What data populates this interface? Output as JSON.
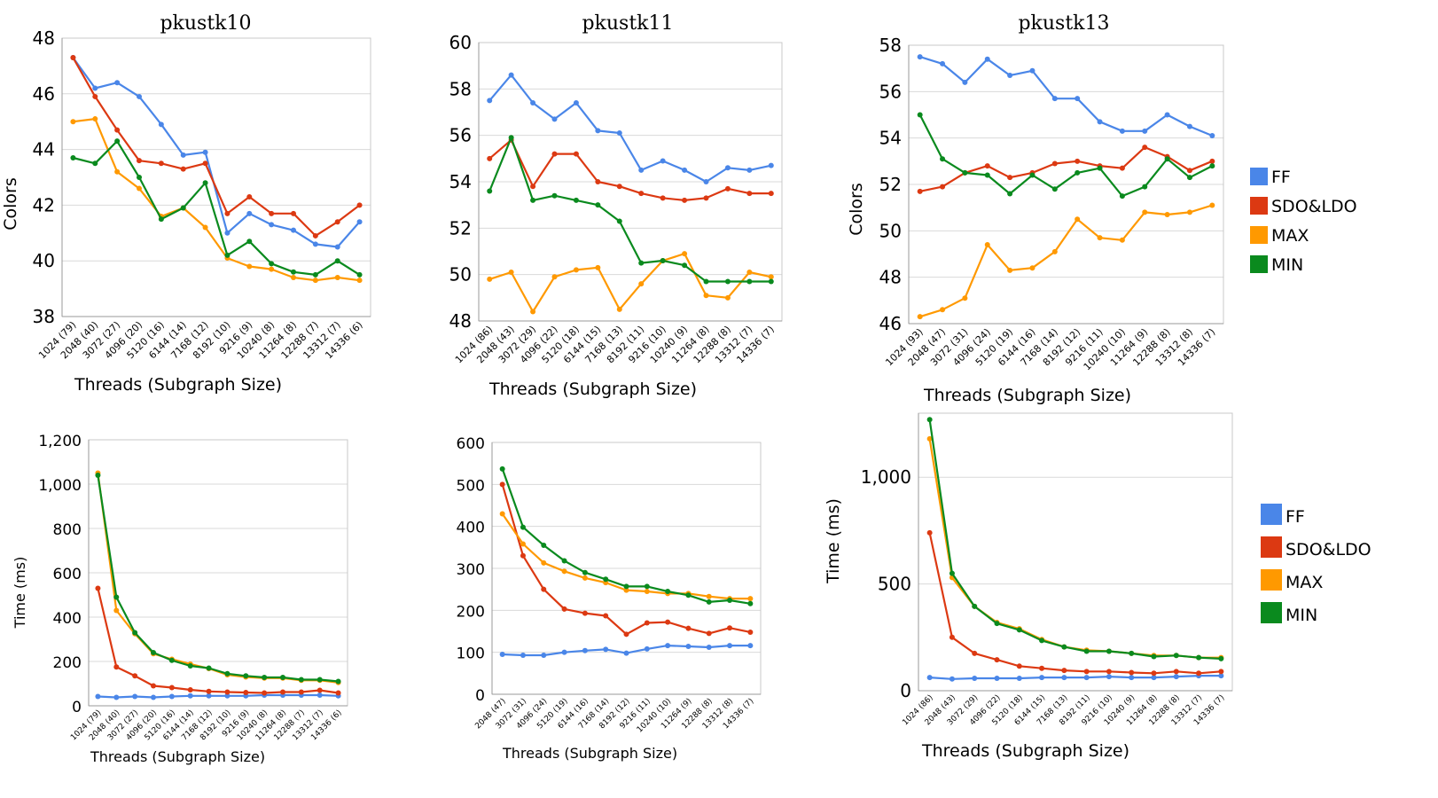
{
  "colors": {
    "FF": "#4a86e8",
    "SDO&LDO": "#dc3912",
    "MAX": "#ff9900",
    "MIN": "#0a8a1e",
    "grid": "#d9d9d9"
  },
  "legend_top": [
    "FF",
    "SDO&LDO",
    "MAX",
    "MIN"
  ],
  "legend_bottom": [
    "FF",
    "SDO&LDO",
    "MAX",
    "MIN"
  ],
  "chart_data": [
    {
      "type": "line",
      "title": "pkustk10",
      "xlabel": "Threads (Subgraph Size)",
      "ylabel": "Colors",
      "ylim": [
        38,
        48
      ],
      "yticks": [
        "38",
        "40",
        "42",
        "44",
        "46",
        "48"
      ],
      "categories": [
        "1024 (79)",
        "2048 (40)",
        "3072 (27)",
        "4096 (20)",
        "5120 (16)",
        "6144 (14)",
        "7168 (12)",
        "8192 (10)",
        "9216 (9)",
        "10240 (8)",
        "11264 (8)",
        "12288 (7)",
        "13312 (7)",
        "14336 (6)"
      ],
      "series": [
        {
          "name": "FF",
          "values": [
            47.3,
            46.2,
            46.4,
            45.9,
            44.9,
            43.8,
            43.9,
            41.0,
            41.7,
            41.3,
            41.1,
            40.6,
            40.5,
            41.4
          ]
        },
        {
          "name": "SDO&LDO",
          "values": [
            47.3,
            45.9,
            44.7,
            43.6,
            43.5,
            43.3,
            43.5,
            41.7,
            42.3,
            41.7,
            41.7,
            40.9,
            41.4,
            42.0
          ]
        },
        {
          "name": "MAX",
          "values": [
            45.0,
            45.1,
            43.2,
            42.6,
            41.6,
            41.9,
            41.2,
            40.1,
            39.8,
            39.7,
            39.4,
            39.3,
            39.4,
            39.3
          ]
        },
        {
          "name": "MIN",
          "values": [
            43.7,
            43.5,
            44.3,
            43.0,
            41.5,
            41.9,
            42.8,
            40.2,
            40.7,
            39.9,
            39.6,
            39.5,
            40.0,
            39.5
          ]
        }
      ]
    },
    {
      "type": "line",
      "title": "pkustk11",
      "xlabel": "Threads (Subgraph Size)",
      "ylabel": "",
      "ylim": [
        48,
        60
      ],
      "yticks": [
        "48",
        "50",
        "52",
        "54",
        "56",
        "58",
        "60"
      ],
      "categories": [
        "1024 (86)",
        "2048 (43)",
        "3072 (29)",
        "4096 (22)",
        "5120 (18)",
        "6144 (15)",
        "7168 (13)",
        "8192 (11)",
        "9216 (10)",
        "10240 (9)",
        "11264 (8)",
        "12288 (8)",
        "13312 (7)",
        "14336 (7)"
      ],
      "series": [
        {
          "name": "FF",
          "values": [
            57.5,
            58.6,
            57.4,
            56.7,
            57.4,
            56.2,
            56.1,
            54.5,
            54.9,
            54.5,
            54.0,
            54.6,
            54.5,
            54.7
          ]
        },
        {
          "name": "SDO&LDO",
          "values": [
            55.0,
            55.8,
            53.8,
            55.2,
            55.2,
            54.0,
            53.8,
            53.5,
            53.3,
            53.2,
            53.3,
            53.7,
            53.5,
            53.5
          ]
        },
        {
          "name": "MAX",
          "values": [
            49.8,
            50.1,
            48.4,
            49.9,
            50.2,
            50.3,
            48.5,
            49.6,
            50.6,
            50.9,
            49.1,
            49.0,
            50.1,
            49.9
          ]
        },
        {
          "name": "MIN",
          "values": [
            53.6,
            55.9,
            53.2,
            53.4,
            53.2,
            53.0,
            52.3,
            50.5,
            50.6,
            50.4,
            49.7,
            49.7,
            49.7,
            49.7
          ]
        }
      ]
    },
    {
      "type": "line",
      "title": "pkustk13",
      "xlabel": "Threads (Subgraph Size)",
      "ylabel": "Colors",
      "ylim": [
        46,
        58
      ],
      "yticks": [
        "46",
        "48",
        "50",
        "52",
        "54",
        "56",
        "58"
      ],
      "categories": [
        "1024 (93)",
        "2048 (47)",
        "3072 (31)",
        "4096 (24)",
        "5120 (19)",
        "6144 (16)",
        "7168 (14)",
        "8192 (12)",
        "9216 (11)",
        "10240 (10)",
        "11264 (9)",
        "12288 (8)",
        "13312 (8)",
        "14336 (7)"
      ],
      "series": [
        {
          "name": "FF",
          "values": [
            57.5,
            57.2,
            56.4,
            57.4,
            56.7,
            56.9,
            55.7,
            55.7,
            54.7,
            54.3,
            54.3,
            55.0,
            54.5,
            54.1
          ]
        },
        {
          "name": "SDO&LDO",
          "values": [
            51.7,
            51.9,
            52.5,
            52.8,
            52.3,
            52.5,
            52.9,
            53.0,
            52.8,
            52.7,
            53.6,
            53.2,
            52.6,
            53.0
          ]
        },
        {
          "name": "MAX",
          "values": [
            46.3,
            46.6,
            47.1,
            49.4,
            48.3,
            48.4,
            49.1,
            50.5,
            49.7,
            49.6,
            50.8,
            50.7,
            50.8,
            51.1
          ]
        },
        {
          "name": "MIN",
          "values": [
            55.0,
            53.1,
            52.5,
            52.4,
            51.6,
            52.4,
            51.8,
            52.5,
            52.7,
            51.5,
            51.9,
            53.1,
            52.3,
            52.8
          ]
        }
      ]
    },
    {
      "type": "line",
      "title": "",
      "xlabel": "Threads (Subgraph Size)",
      "ylabel": "Time (ms)",
      "ylim": [
        0,
        1200
      ],
      "yticks": [
        "0",
        "200",
        "400",
        "600",
        "800",
        "1,000",
        "1,200"
      ],
      "categories": [
        "1024 (79)",
        "2048 (40)",
        "3072 (27)",
        "4096 (20)",
        "5120 (16)",
        "6144 (14)",
        "7168 (12)",
        "8192 (10)",
        "9216 (9)",
        "10240 (8)",
        "11264 (8)",
        "12288 (7)",
        "13312 (7)",
        "14336 (6)"
      ],
      "series": [
        {
          "name": "FF",
          "values": [
            42,
            38,
            42,
            38,
            42,
            45,
            45,
            45,
            45,
            48,
            48,
            48,
            48,
            45
          ]
        },
        {
          "name": "SDO&LDO",
          "values": [
            530,
            175,
            135,
            90,
            82,
            72,
            65,
            62,
            60,
            58,
            62,
            62,
            70,
            58
          ]
        },
        {
          "name": "MAX",
          "values": [
            1050,
            430,
            325,
            235,
            210,
            188,
            168,
            140,
            130,
            125,
            125,
            115,
            115,
            105
          ]
        },
        {
          "name": "MIN",
          "values": [
            1040,
            490,
            330,
            240,
            205,
            180,
            170,
            145,
            135,
            128,
            128,
            118,
            118,
            110
          ]
        }
      ]
    },
    {
      "type": "line",
      "title": "",
      "xlabel": "Threads (Subgraph Size)",
      "ylabel": "",
      "ylim": [
        0,
        600
      ],
      "yticks": [
        "0",
        "100",
        "200",
        "300",
        "400",
        "500",
        "600"
      ],
      "categories": [
        "2048 (47)",
        "3072 (31)",
        "4096 (24)",
        "5120 (19)",
        "6144 (16)",
        "7168 (14)",
        "8192 (12)",
        "9216 (11)",
        "10240 (10)",
        "11264 (9)",
        "12288 (8)",
        "13312 (8)",
        "14336 (7)"
      ],
      "series": [
        {
          "name": "FF",
          "values": [
            95,
            93,
            93,
            100,
            104,
            107,
            98,
            108,
            116,
            114,
            112,
            116,
            116
          ]
        },
        {
          "name": "SDO&LDO",
          "values": [
            500,
            330,
            250,
            203,
            193,
            187,
            143,
            170,
            172,
            157,
            145,
            158,
            148
          ]
        },
        {
          "name": "MAX",
          "values": [
            430,
            358,
            313,
            293,
            277,
            266,
            248,
            245,
            240,
            240,
            233,
            228,
            228
          ]
        },
        {
          "name": "MIN",
          "values": [
            537,
            398,
            355,
            318,
            290,
            274,
            257,
            257,
            245,
            236,
            220,
            224,
            216
          ]
        }
      ]
    },
    {
      "type": "line",
      "title": "",
      "xlabel": "Threads (Subgraph Size)",
      "ylabel": "Time (ms)",
      "ylim": [
        0,
        1300
      ],
      "yticks": [
        "0",
        "500",
        "1,000"
      ],
      "ytick_values": [
        0,
        500,
        1000
      ],
      "categories": [
        "1024 (86)",
        "2048 (43)",
        "3072 (29)",
        "4096 (22)",
        "5120 (18)",
        "6144 (15)",
        "7168 (13)",
        "8192 (11)",
        "9216 (10)",
        "10240 (9)",
        "11264 (8)",
        "12288 (8)",
        "13312 (7)",
        "14336 (7)"
      ],
      "series": [
        {
          "name": "FF",
          "values": [
            62,
            55,
            58,
            58,
            58,
            62,
            62,
            62,
            66,
            62,
            62,
            66,
            70,
            70
          ]
        },
        {
          "name": "SDO&LDO",
          "values": [
            740,
            250,
            175,
            145,
            115,
            105,
            95,
            90,
            90,
            85,
            82,
            90,
            82,
            90
          ]
        },
        {
          "name": "MAX",
          "values": [
            1180,
            530,
            395,
            320,
            290,
            240,
            205,
            190,
            185,
            175,
            165,
            165,
            155,
            155
          ]
        },
        {
          "name": "MIN",
          "values": [
            1270,
            550,
            395,
            315,
            285,
            235,
            205,
            185,
            185,
            175,
            160,
            165,
            155,
            150
          ]
        }
      ]
    }
  ]
}
